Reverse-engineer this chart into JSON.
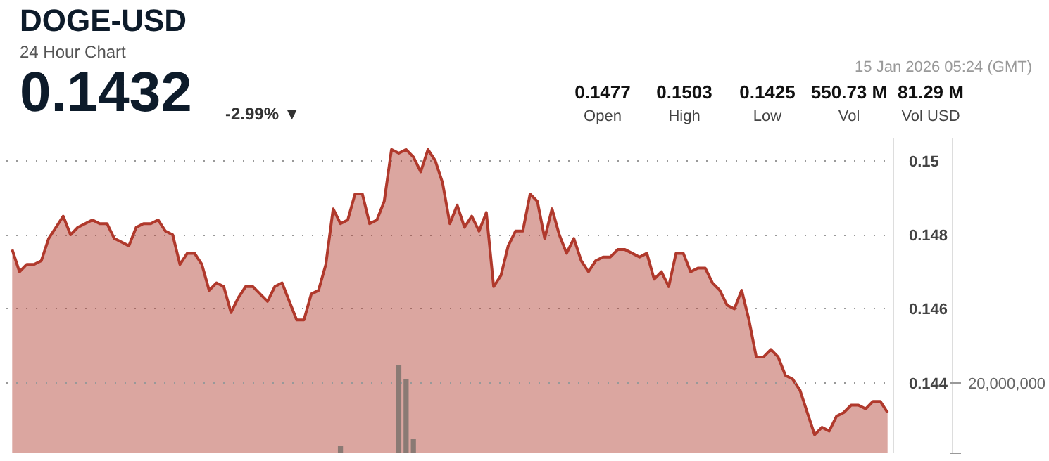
{
  "chart_data": {
    "type": "area",
    "title": "DOGE-USD",
    "subtitle": "24 Hour Chart",
    "annotations": [
      "0.1432",
      "-2.99% ▼",
      "15 Jan 2026 05:24 (GMT)",
      "0.1477",
      "Open",
      "0.1503",
      "High",
      "0.1425",
      "Low",
      "550.73 M",
      "Vol",
      "81.29 M",
      "Vol USD"
    ],
    "categories": [
      null,
      null,
      null,
      null,
      null,
      null,
      null,
      null,
      null,
      null,
      null,
      null,
      null,
      null,
      null,
      null,
      null,
      null,
      null,
      null,
      null,
      null,
      null,
      null,
      null,
      null,
      null,
      null,
      null,
      null,
      null,
      null,
      null,
      null,
      null,
      null,
      null,
      null,
      null,
      null,
      null,
      null,
      null,
      null,
      null,
      null,
      null,
      null,
      null,
      null,
      null,
      null,
      null,
      null,
      null,
      null,
      null,
      null,
      null,
      null,
      null,
      null,
      null,
      null,
      null,
      null,
      null,
      null,
      null,
      null,
      null,
      null,
      null,
      null,
      null,
      null,
      null,
      null,
      null,
      null,
      null,
      null,
      null,
      null,
      null,
      null,
      null,
      null,
      null,
      null,
      null,
      null,
      null,
      null,
      null,
      null,
      null,
      null,
      null,
      null,
      null,
      null,
      null,
      null,
      null,
      null,
      null,
      null,
      null,
      null,
      null,
      null,
      null,
      null,
      null,
      null,
      null,
      null,
      null,
      null,
      null
    ],
    "series": [
      {
        "color": "#b0392c",
        "values": [
          0.1476,
          0.147,
          0.1472,
          0.1472,
          0.1473,
          0.1479,
          0.1482,
          0.1485,
          0.148,
          0.1482,
          0.1483,
          0.1484,
          0.1483,
          0.1483,
          0.1479,
          0.1478,
          0.1477,
          0.1482,
          0.1483,
          0.1483,
          0.1484,
          0.1481,
          0.148,
          0.1472,
          0.1475,
          0.1475,
          0.1472,
          0.1465,
          0.1467,
          0.1466,
          0.1459,
          0.1463,
          0.1466,
          0.1466,
          0.1464,
          0.1462,
          0.1466,
          0.1467,
          0.1462,
          0.1457,
          0.1457,
          0.1464,
          0.1465,
          0.1472,
          0.1487,
          0.1483,
          0.1484,
          0.1491,
          0.1491,
          0.1483,
          0.1484,
          0.1489,
          0.1503,
          0.1502,
          0.1503,
          0.1501,
          0.1497,
          0.1503,
          0.15,
          0.1494,
          0.1483,
          0.1488,
          0.1482,
          0.1485,
          0.1481,
          0.1486,
          0.1466,
          0.1469,
          0.1477,
          0.1481,
          0.1481,
          0.1491,
          0.1489,
          0.1479,
          0.1487,
          0.148,
          0.1475,
          0.1479,
          0.1473,
          0.147,
          0.1473,
          0.1474,
          0.1474,
          0.1476,
          0.1476,
          0.1475,
          0.1474,
          0.1475,
          0.1468,
          0.147,
          0.1466,
          0.1475,
          0.1475,
          0.147,
          0.1471,
          0.1471,
          0.1467,
          0.1465,
          0.1461,
          0.146,
          0.1465,
          0.1457,
          0.1447,
          0.1447,
          0.1449,
          0.1447,
          0.1442,
          0.1441,
          0.1438,
          0.1432,
          0.1426,
          0.1428,
          0.1427,
          0.1431,
          0.1432,
          0.1434,
          0.1434,
          0.1433,
          0.1435,
          0.1435,
          0.1432
        ]
      },
      {
        "type": "bar",
        "axis": "y2",
        "color": "#8a7a74",
        "values": [
          null,
          null,
          null,
          null,
          null,
          null,
          null,
          null,
          null,
          null,
          null,
          null,
          null,
          null,
          null,
          null,
          null,
          null,
          null,
          null,
          null,
          null,
          null,
          null,
          null,
          null,
          null,
          null,
          null,
          null,
          null,
          null,
          null,
          null,
          null,
          null,
          null,
          null,
          null,
          null,
          null,
          null,
          null,
          null,
          null,
          2000000,
          null,
          null,
          null,
          null,
          null,
          null,
          null,
          25000000,
          21000000,
          4000000,
          null,
          null,
          null,
          null,
          null,
          null,
          null,
          null,
          null,
          null,
          null,
          null,
          null,
          null,
          null,
          null,
          null,
          null,
          null,
          null,
          null,
          null,
          null,
          null,
          null,
          null,
          null,
          null,
          null,
          null,
          null,
          null,
          null,
          null,
          null,
          null,
          null,
          null,
          null,
          null,
          null,
          null,
          null,
          null,
          null,
          null,
          null,
          null,
          null,
          null,
          null,
          null,
          null,
          null,
          null,
          null,
          null,
          null,
          null,
          null,
          null,
          null,
          null,
          null,
          null
        ]
      }
    ],
    "ylim": [
      0.1421,
      0.1506
    ],
    "yticks": [
      0.144,
      0.146,
      0.148,
      0.15
    ],
    "y2lim": [
      0,
      89600000
    ],
    "y2ticks": [
      {
        "value": 0,
        "label": null
      },
      {
        "value": 20000000,
        "label": "20,000,000"
      }
    ],
    "grid": "y"
  }
}
